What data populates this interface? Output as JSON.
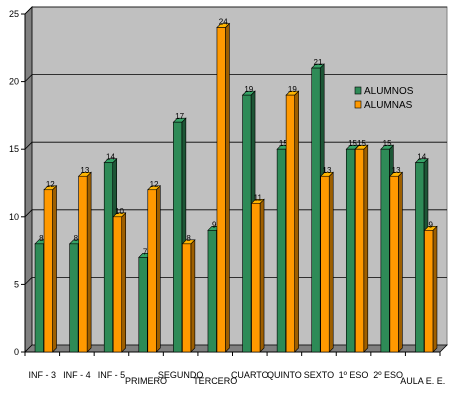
{
  "chart_data": {
    "type": "bar",
    "categories": [
      "INF - 3",
      "INF - 4",
      "INF - 5",
      "PRIMERO",
      "SEGUNDO",
      "TERCERO",
      "CUARTO",
      "QUINTO",
      "SEXTO",
      "1º ESO",
      "2º ESO",
      "AULA E. E."
    ],
    "series": [
      {
        "name": "ALUMNOS",
        "values": [
          8,
          8,
          14,
          7,
          17,
          9,
          19,
          15,
          21,
          15,
          15,
          14
        ],
        "color": "#2e8b57"
      },
      {
        "name": "ALUMNAS",
        "values": [
          12,
          13,
          10,
          12,
          8,
          24,
          11,
          19,
          13,
          15,
          13,
          9
        ],
        "color": "#ff9900"
      }
    ],
    "y_ticks": [
      "0",
      "5",
      "10",
      "15",
      "20",
      "25"
    ],
    "ylim": [
      0,
      25
    ],
    "grid": true,
    "legend_position": "right",
    "data_labels": true,
    "style": "3d",
    "plot_background": "#c0c0c0",
    "wall_color": "#808080",
    "gridline_color": "#000000"
  }
}
